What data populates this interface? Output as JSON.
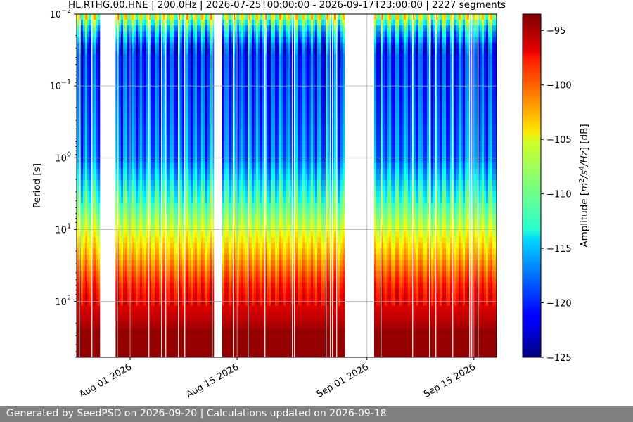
{
  "chart_data": {
    "type": "heatmap",
    "title": "HL.RTHG.00.HNE | 200.0Hz | 2026-07-25T00:00:00 - 2026-09-17T23:00:00 | 2227 segments",
    "ylabel": "Period [s]",
    "xlabel": "",
    "x_range": [
      "2026-07-25",
      "2026-09-17"
    ],
    "x_ticks": [
      {
        "date": "2026-08-01",
        "label": "Aug 01 2026"
      },
      {
        "date": "2026-08-15",
        "label": "Aug 15 2026"
      },
      {
        "date": "2026-09-01",
        "label": "Sep 01 2026"
      },
      {
        "date": "2026-09-15",
        "label": "Sep 15 2026"
      }
    ],
    "y_scale": "log",
    "y_inverted": true,
    "y_range": [
      0.01,
      600
    ],
    "y_ticks": [
      {
        "value": 0.01,
        "base": "10",
        "exp": "−2"
      },
      {
        "value": 0.1,
        "base": "10",
        "exp": "−1"
      },
      {
        "value": 1,
        "base": "10",
        "exp": "0"
      },
      {
        "value": 10,
        "base": "10",
        "exp": "1"
      },
      {
        "value": 100,
        "base": "10",
        "exp": "2"
      }
    ],
    "grid": true,
    "data_gaps": [
      [
        "2026-07-28",
        "2026-07-30"
      ],
      [
        "2026-08-12",
        "2026-08-13"
      ],
      [
        "2026-08-29",
        "2026-09-02"
      ]
    ],
    "colorbar": {
      "label_prefix": "Amplitude [",
      "label_unit_1": "m",
      "label_exp_1": "2",
      "label_unit_2": "/s",
      "label_exp_2": "4",
      "label_unit_3": "/Hz",
      "label_suffix": "] [dB]",
      "min": -125,
      "max": -93.5,
      "ticks": [
        "−95",
        "−100",
        "−105",
        "−110",
        "−115",
        "−120",
        "−125"
      ],
      "tick_values": [
        -95,
        -100,
        -105,
        -110,
        -115,
        -120,
        -125
      ],
      "colormap": "jet"
    }
  },
  "footer": {
    "text": "Generated by SeedPSD on 2026-09-20 | Calculations updated on 2026-09-18"
  }
}
